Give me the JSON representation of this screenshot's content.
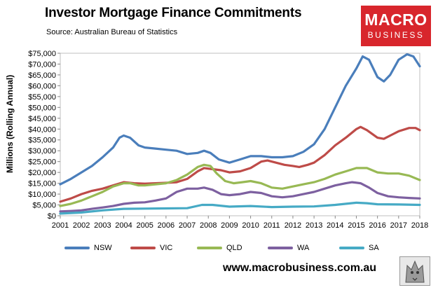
{
  "header": {
    "title": "Investor Mortgage Finance Commitments",
    "subtitle": "Source: Australian Bureau of Statistics"
  },
  "logo": {
    "line1": "MACRO",
    "line2": "BUSINESS",
    "color": "#d8262c"
  },
  "footer": {
    "url": "www.macrobusiness.com.au"
  },
  "chart_data": {
    "type": "line",
    "ylabel": "Millions (Rolling Annual)",
    "ylim": [
      0,
      75000
    ],
    "xlim": [
      2001,
      2018
    ],
    "yticks": [
      "$0",
      "$5,000",
      "$10,000",
      "$15,000",
      "$20,000",
      "$25,000",
      "$30,000",
      "$35,000",
      "$40,000",
      "$45,000",
      "$50,000",
      "$55,000",
      "$60,000",
      "$65,000",
      "$70,000",
      "$75,000"
    ],
    "xticks": [
      "2001",
      "2002",
      "2003",
      "2004",
      "2005",
      "2006",
      "2007",
      "2008",
      "2009",
      "2010",
      "2011",
      "2012",
      "2013",
      "2014",
      "2015",
      "2016",
      "2017",
      "2018"
    ],
    "grid": false,
    "legend": "bottom",
    "series": [
      {
        "name": "NSW",
        "color": "#4a7ebb",
        "points": [
          [
            2001,
            14500
          ],
          [
            2001.5,
            17000
          ],
          [
            2002,
            20000
          ],
          [
            2002.5,
            23000
          ],
          [
            2003,
            27000
          ],
          [
            2003.5,
            31500
          ],
          [
            2003.8,
            36000
          ],
          [
            2004.0,
            37000
          ],
          [
            2004.3,
            36000
          ],
          [
            2004.7,
            32500
          ],
          [
            2005,
            31500
          ],
          [
            2005.5,
            31000
          ],
          [
            2006,
            30500
          ],
          [
            2006.5,
            30000
          ],
          [
            2007,
            28500
          ],
          [
            2007.5,
            29000
          ],
          [
            2007.8,
            30000
          ],
          [
            2008.1,
            29000
          ],
          [
            2008.5,
            26000
          ],
          [
            2009,
            24500
          ],
          [
            2009.5,
            26000
          ],
          [
            2010,
            27500
          ],
          [
            2010.5,
            27500
          ],
          [
            2011,
            27000
          ],
          [
            2011.5,
            27000
          ],
          [
            2012,
            27500
          ],
          [
            2012.5,
            29500
          ],
          [
            2013,
            33000
          ],
          [
            2013.5,
            40000
          ],
          [
            2014,
            50000
          ],
          [
            2014.5,
            60000
          ],
          [
            2015,
            68000
          ],
          [
            2015.3,
            73500
          ],
          [
            2015.6,
            72000
          ],
          [
            2016,
            64000
          ],
          [
            2016.3,
            62000
          ],
          [
            2016.6,
            65000
          ],
          [
            2017,
            72000
          ],
          [
            2017.4,
            74500
          ],
          [
            2017.7,
            73500
          ],
          [
            2018,
            69000
          ]
        ]
      },
      {
        "name": "VIC",
        "color": "#be4b48",
        "points": [
          [
            2001,
            6500
          ],
          [
            2001.5,
            8000
          ],
          [
            2002,
            10000
          ],
          [
            2002.5,
            11500
          ],
          [
            2003,
            12500
          ],
          [
            2003.5,
            14000
          ],
          [
            2004,
            15500
          ],
          [
            2004.5,
            15000
          ],
          [
            2005,
            14800
          ],
          [
            2005.5,
            15000
          ],
          [
            2006,
            15200
          ],
          [
            2006.5,
            15500
          ],
          [
            2007,
            17000
          ],
          [
            2007.5,
            20500
          ],
          [
            2007.8,
            22000
          ],
          [
            2008.2,
            21500
          ],
          [
            2008.6,
            21000
          ],
          [
            2009,
            20000
          ],
          [
            2009.5,
            20500
          ],
          [
            2010,
            22000
          ],
          [
            2010.5,
            25000
          ],
          [
            2010.8,
            25500
          ],
          [
            2011.2,
            24500
          ],
          [
            2011.6,
            23500
          ],
          [
            2012,
            23000
          ],
          [
            2012.3,
            22500
          ],
          [
            2012.7,
            23500
          ],
          [
            2013,
            24500
          ],
          [
            2013.5,
            28000
          ],
          [
            2014,
            32500
          ],
          [
            2014.5,
            36000
          ],
          [
            2015,
            40000
          ],
          [
            2015.2,
            41000
          ],
          [
            2015.5,
            39500
          ],
          [
            2016,
            36000
          ],
          [
            2016.3,
            35500
          ],
          [
            2016.7,
            37500
          ],
          [
            2017,
            39000
          ],
          [
            2017.5,
            40500
          ],
          [
            2017.8,
            40500
          ],
          [
            2018,
            39500
          ]
        ]
      },
      {
        "name": "QLD",
        "color": "#98b954",
        "points": [
          [
            2001,
            4500
          ],
          [
            2001.5,
            5500
          ],
          [
            2002,
            7000
          ],
          [
            2002.5,
            9000
          ],
          [
            2003,
            11000
          ],
          [
            2003.5,
            13500
          ],
          [
            2004,
            15000
          ],
          [
            2004.3,
            15000
          ],
          [
            2004.7,
            14000
          ],
          [
            2005,
            14000
          ],
          [
            2005.5,
            14500
          ],
          [
            2006,
            15000
          ],
          [
            2006.5,
            16500
          ],
          [
            2007,
            19000
          ],
          [
            2007.5,
            22500
          ],
          [
            2007.8,
            23500
          ],
          [
            2008.1,
            23000
          ],
          [
            2008.4,
            19500
          ],
          [
            2008.8,
            16000
          ],
          [
            2009.2,
            15000
          ],
          [
            2009.6,
            15500
          ],
          [
            2010,
            16000
          ],
          [
            2010.5,
            15000
          ],
          [
            2011,
            13000
          ],
          [
            2011.5,
            12500
          ],
          [
            2012,
            13500
          ],
          [
            2012.5,
            14500
          ],
          [
            2013,
            15500
          ],
          [
            2013.5,
            17000
          ],
          [
            2014,
            19000
          ],
          [
            2014.5,
            20500
          ],
          [
            2015,
            22000
          ],
          [
            2015.5,
            22000
          ],
          [
            2016,
            20000
          ],
          [
            2016.5,
            19500
          ],
          [
            2017,
            19500
          ],
          [
            2017.5,
            18500
          ],
          [
            2018,
            16500
          ]
        ]
      },
      {
        "name": "WA",
        "color": "#7d60a0",
        "points": [
          [
            2001,
            2000
          ],
          [
            2001.5,
            2200
          ],
          [
            2002,
            2500
          ],
          [
            2002.5,
            3200
          ],
          [
            2003,
            3800
          ],
          [
            2003.5,
            4500
          ],
          [
            2004,
            5500
          ],
          [
            2004.5,
            6000
          ],
          [
            2005,
            6200
          ],
          [
            2005.5,
            7000
          ],
          [
            2006,
            8000
          ],
          [
            2006.5,
            11000
          ],
          [
            2007,
            12500
          ],
          [
            2007.5,
            12500
          ],
          [
            2007.8,
            13000
          ],
          [
            2008.2,
            12000
          ],
          [
            2008.6,
            10000
          ],
          [
            2009,
            9500
          ],
          [
            2009.5,
            10000
          ],
          [
            2010,
            11000
          ],
          [
            2010.5,
            10500
          ],
          [
            2011,
            9000
          ],
          [
            2011.5,
            8500
          ],
          [
            2012,
            9000
          ],
          [
            2012.5,
            10000
          ],
          [
            2013,
            11000
          ],
          [
            2013.5,
            12500
          ],
          [
            2014,
            14000
          ],
          [
            2014.5,
            15000
          ],
          [
            2014.8,
            15500
          ],
          [
            2015.2,
            15000
          ],
          [
            2015.6,
            13000
          ],
          [
            2016,
            10500
          ],
          [
            2016.5,
            9000
          ],
          [
            2017,
            8500
          ],
          [
            2017.5,
            8200
          ],
          [
            2018,
            8000
          ]
        ]
      },
      {
        "name": "SA",
        "color": "#46aac5",
        "points": [
          [
            2001,
            1000
          ],
          [
            2002,
            1500
          ],
          [
            2003,
            2500
          ],
          [
            2004,
            3200
          ],
          [
            2005,
            3300
          ],
          [
            2006,
            3400
          ],
          [
            2007,
            3500
          ],
          [
            2007.7,
            5000
          ],
          [
            2008.2,
            5000
          ],
          [
            2009,
            4200
          ],
          [
            2010,
            4500
          ],
          [
            2011,
            4000
          ],
          [
            2012,
            4200
          ],
          [
            2013,
            4300
          ],
          [
            2014,
            5000
          ],
          [
            2015,
            6000
          ],
          [
            2015.5,
            5800
          ],
          [
            2016,
            5300
          ],
          [
            2017,
            5200
          ],
          [
            2018,
            5000
          ]
        ]
      }
    ]
  }
}
